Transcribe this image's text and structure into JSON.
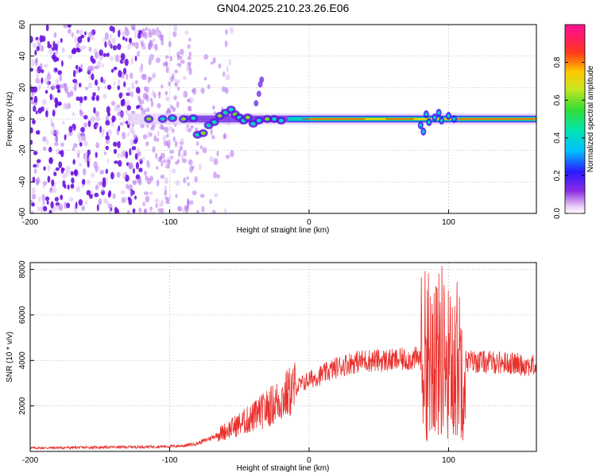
{
  "title": "GN04.2025.210.23.26.E06",
  "chart_data": [
    {
      "type": "heatmap",
      "xlabel": "Height of straight line (km)",
      "ylabel": "Frequency (Hz)",
      "xlim": [
        -200,
        163
      ],
      "ylim": [
        -60,
        60
      ],
      "xticks": [
        -200,
        -100,
        0,
        100
      ],
      "yticks": [
        -60,
        -40,
        -20,
        0,
        20,
        40,
        60
      ],
      "grid": true,
      "colorbar": {
        "label": "Normalized spectral amplitude",
        "range": [
          0,
          1
        ],
        "ticks": [
          0.0,
          0.2,
          0.4,
          0.6,
          0.8
        ],
        "colormap": "rainbow (white-violet-blue-cyan-green-yellow-red-magenta)"
      },
      "features": {
        "noise_region_x": [
          -200,
          -85
        ],
        "dominant_line_frequency_hz": 0,
        "strong_band_x": [
          -15,
          163
        ],
        "disturbances_at_x": [
          -50,
          -35,
          85,
          95
        ]
      }
    },
    {
      "type": "line",
      "xlabel": "Height of straight line (km)",
      "ylabel": "SNR (10 * v/v)",
      "xlim": [
        -200,
        163
      ],
      "ylim": [
        0,
        8300
      ],
      "xticks": [
        -200,
        -100,
        0,
        100
      ],
      "yticks": [
        2000,
        4000,
        6000,
        8000
      ],
      "grid": true,
      "series": [
        {
          "color": "#e8302c",
          "x": [
            -200,
            -150,
            -120,
            -100,
            -90,
            -80,
            -70,
            -60,
            -50,
            -40,
            -30,
            -20,
            -10,
            0,
            10,
            20,
            30,
            40,
            60,
            80,
            85,
            90,
            93,
            95,
            100,
            105,
            110,
            120,
            140,
            163
          ],
          "y": [
            150,
            180,
            200,
            220,
            250,
            350,
            600,
            900,
            1200,
            1500,
            1900,
            2300,
            2800,
            3150,
            3400,
            3700,
            3900,
            4000,
            4000,
            4100,
            4300,
            4600,
            4200,
            4500,
            3800,
            4100,
            4000,
            3950,
            3900,
            3750
          ]
        }
      ]
    }
  ]
}
